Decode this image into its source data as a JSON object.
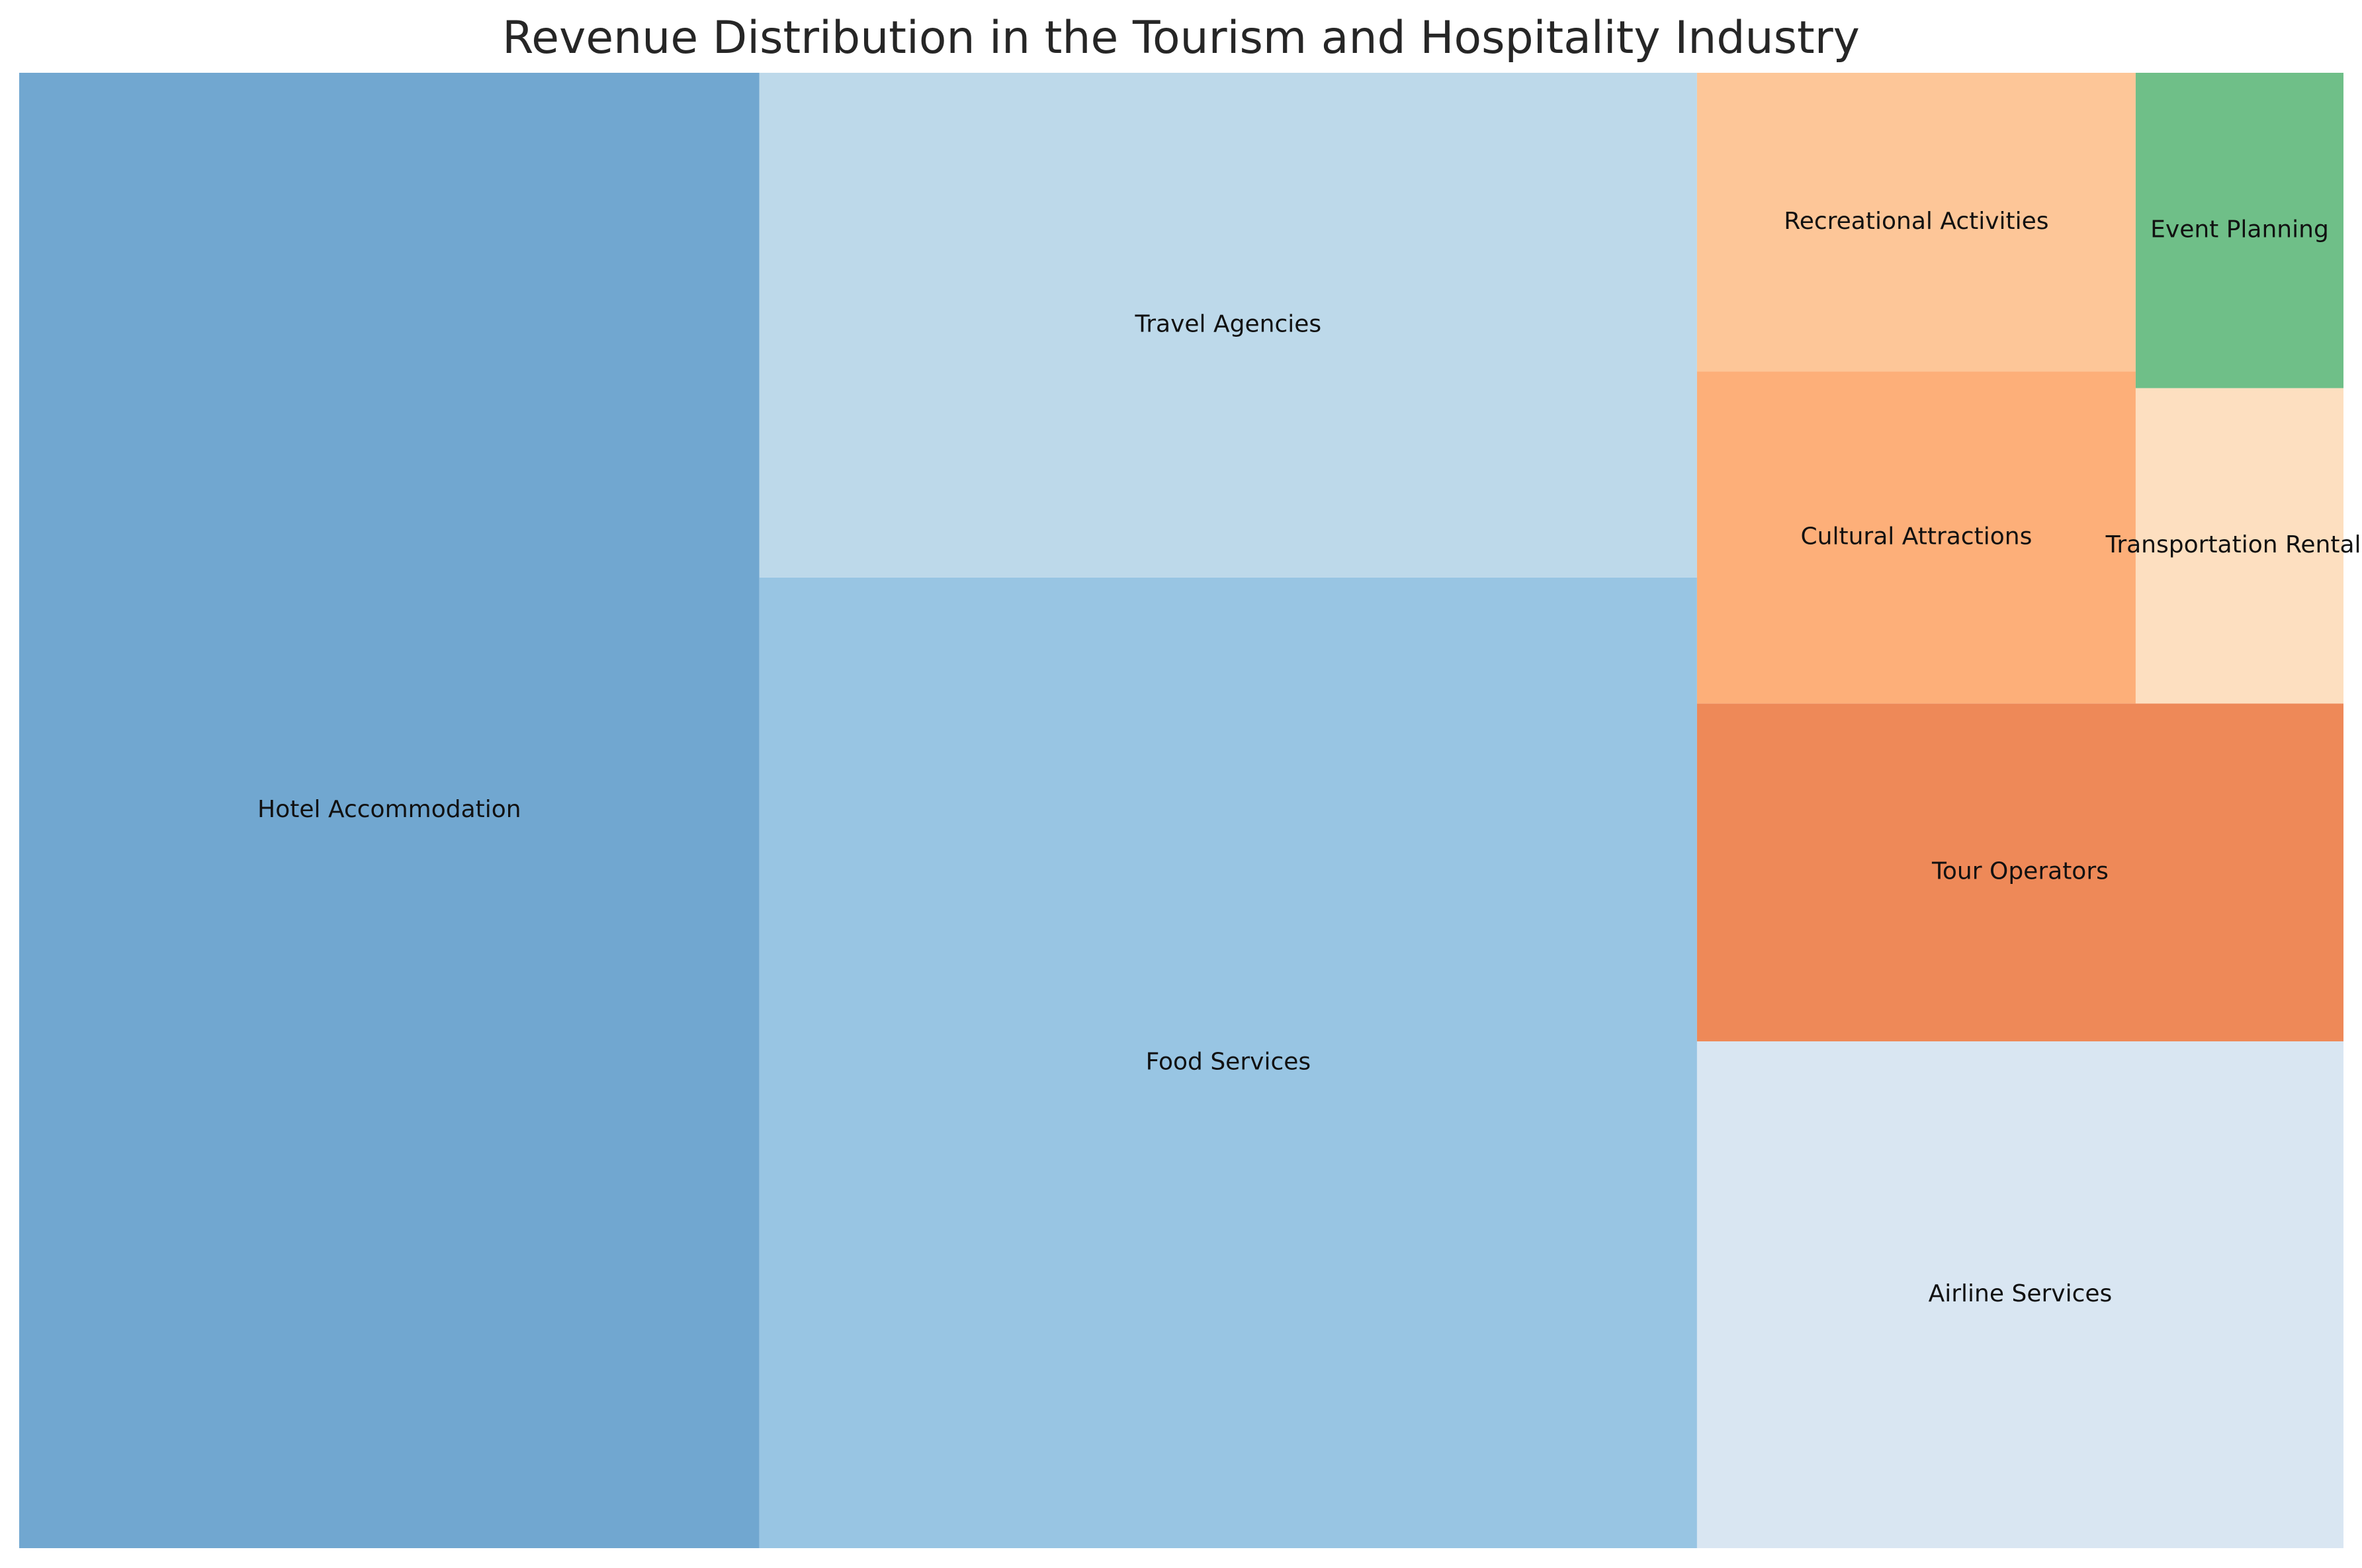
{
  "chart_data": {
    "type": "treemap",
    "title": "Revenue Distribution in the Tourism and Hospitality Industry",
    "items": [
      {
        "name": "Hotel Accommodation",
        "value": 30,
        "color": "#71a7d0"
      },
      {
        "name": "Food Services",
        "value": 25,
        "color": "#98c5e3"
      },
      {
        "name": "Travel Agencies",
        "value": 13,
        "color": "#bdd9ea"
      },
      {
        "name": "Airline Services",
        "value": 9,
        "color": "#d9e6f2"
      },
      {
        "name": "Tour Operators",
        "value": 6,
        "color": "#ee8958"
      },
      {
        "name": "Cultural Attractions",
        "value": 4,
        "color": "#fdaf79"
      },
      {
        "name": "Recreational Activities",
        "value": 3.6,
        "color": "#fdc698"
      },
      {
        "name": "Transportation Rentals",
        "value": 1.8,
        "color": "#fddfc0"
      },
      {
        "name": "Event Planning",
        "value": 1.8,
        "color": "#6fbf88"
      }
    ]
  }
}
